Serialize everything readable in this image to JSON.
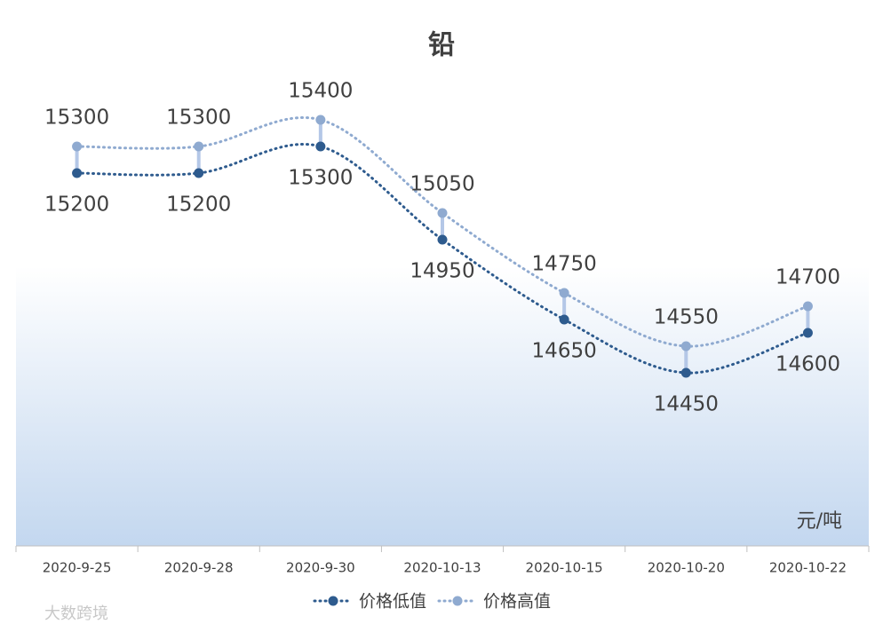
{
  "chart_data": {
    "type": "line",
    "title": "铅",
    "unit_label": "元/吨",
    "watermark": "大数跨境",
    "categories": [
      "2020-9-25",
      "2020-9-28",
      "2020-9-30",
      "2020-10-13",
      "2020-10-15",
      "2020-10-20",
      "2020-10-22"
    ],
    "series": [
      {
        "name": "价格低值",
        "color": "#2e5b8e",
        "values": [
          15200,
          15200,
          15300,
          14950,
          14650,
          14450,
          14600
        ]
      },
      {
        "name": "价格高值",
        "color": "#8faad0",
        "values": [
          15300,
          15300,
          15400,
          15050,
          14750,
          14550,
          14700
        ]
      }
    ],
    "ylim": [
      13800,
      15550
    ],
    "grid": false,
    "legend": "bottom"
  }
}
